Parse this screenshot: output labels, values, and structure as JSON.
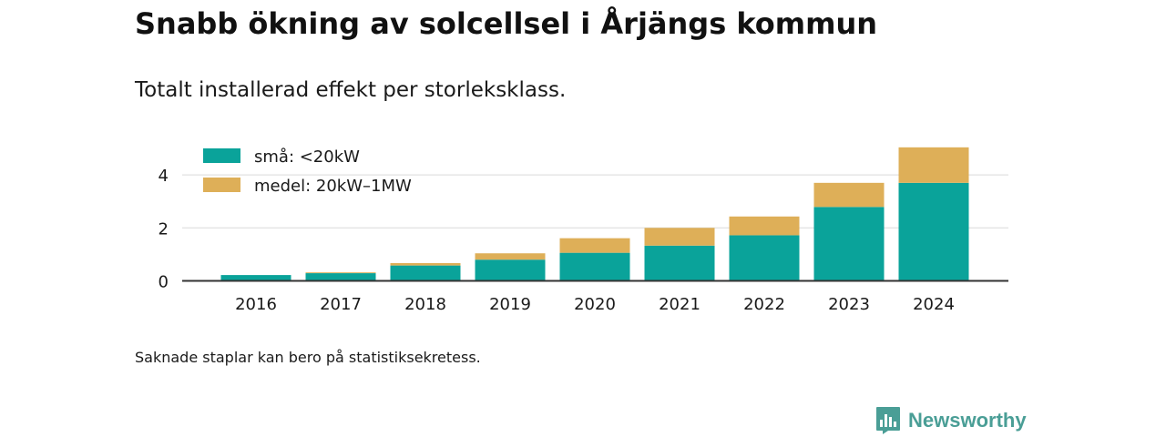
{
  "header": {
    "title": "Snabb ökning av solcellsel i Årjängs kommun",
    "subtitle": "Totalt installerad effekt per storleksklass."
  },
  "footnote": "Saknade staplar kan bero på statistiksekretess.",
  "brand": {
    "name": "Newsworthy",
    "icon": "bar-chart-logo-icon",
    "color": "#4a9e96"
  },
  "colors": {
    "small": "#0aa39a",
    "medium": "#deaf58",
    "grid": "#d9d9d9",
    "axis": "#333333"
  },
  "chart_data": {
    "type": "bar",
    "stacked": true,
    "categories": [
      "2016",
      "2017",
      "2018",
      "2019",
      "2020",
      "2021",
      "2022",
      "2023",
      "2024"
    ],
    "series": [
      {
        "name": "små: <20kW",
        "color": "#0aa39a",
        "values": [
          0.22,
          0.29,
          0.58,
          0.8,
          1.06,
          1.33,
          1.72,
          2.79,
          3.7
        ]
      },
      {
        "name": "medel: 20kW–1MW",
        "color": "#deaf58",
        "values": [
          0.0,
          0.03,
          0.09,
          0.24,
          0.55,
          0.67,
          0.71,
          0.91,
          1.34
        ]
      }
    ],
    "yticks": [
      0,
      2,
      4
    ],
    "ylim": [
      0,
      5.05
    ],
    "xlabel": "",
    "ylabel": "",
    "grid": true,
    "legend_position": "top-left"
  }
}
